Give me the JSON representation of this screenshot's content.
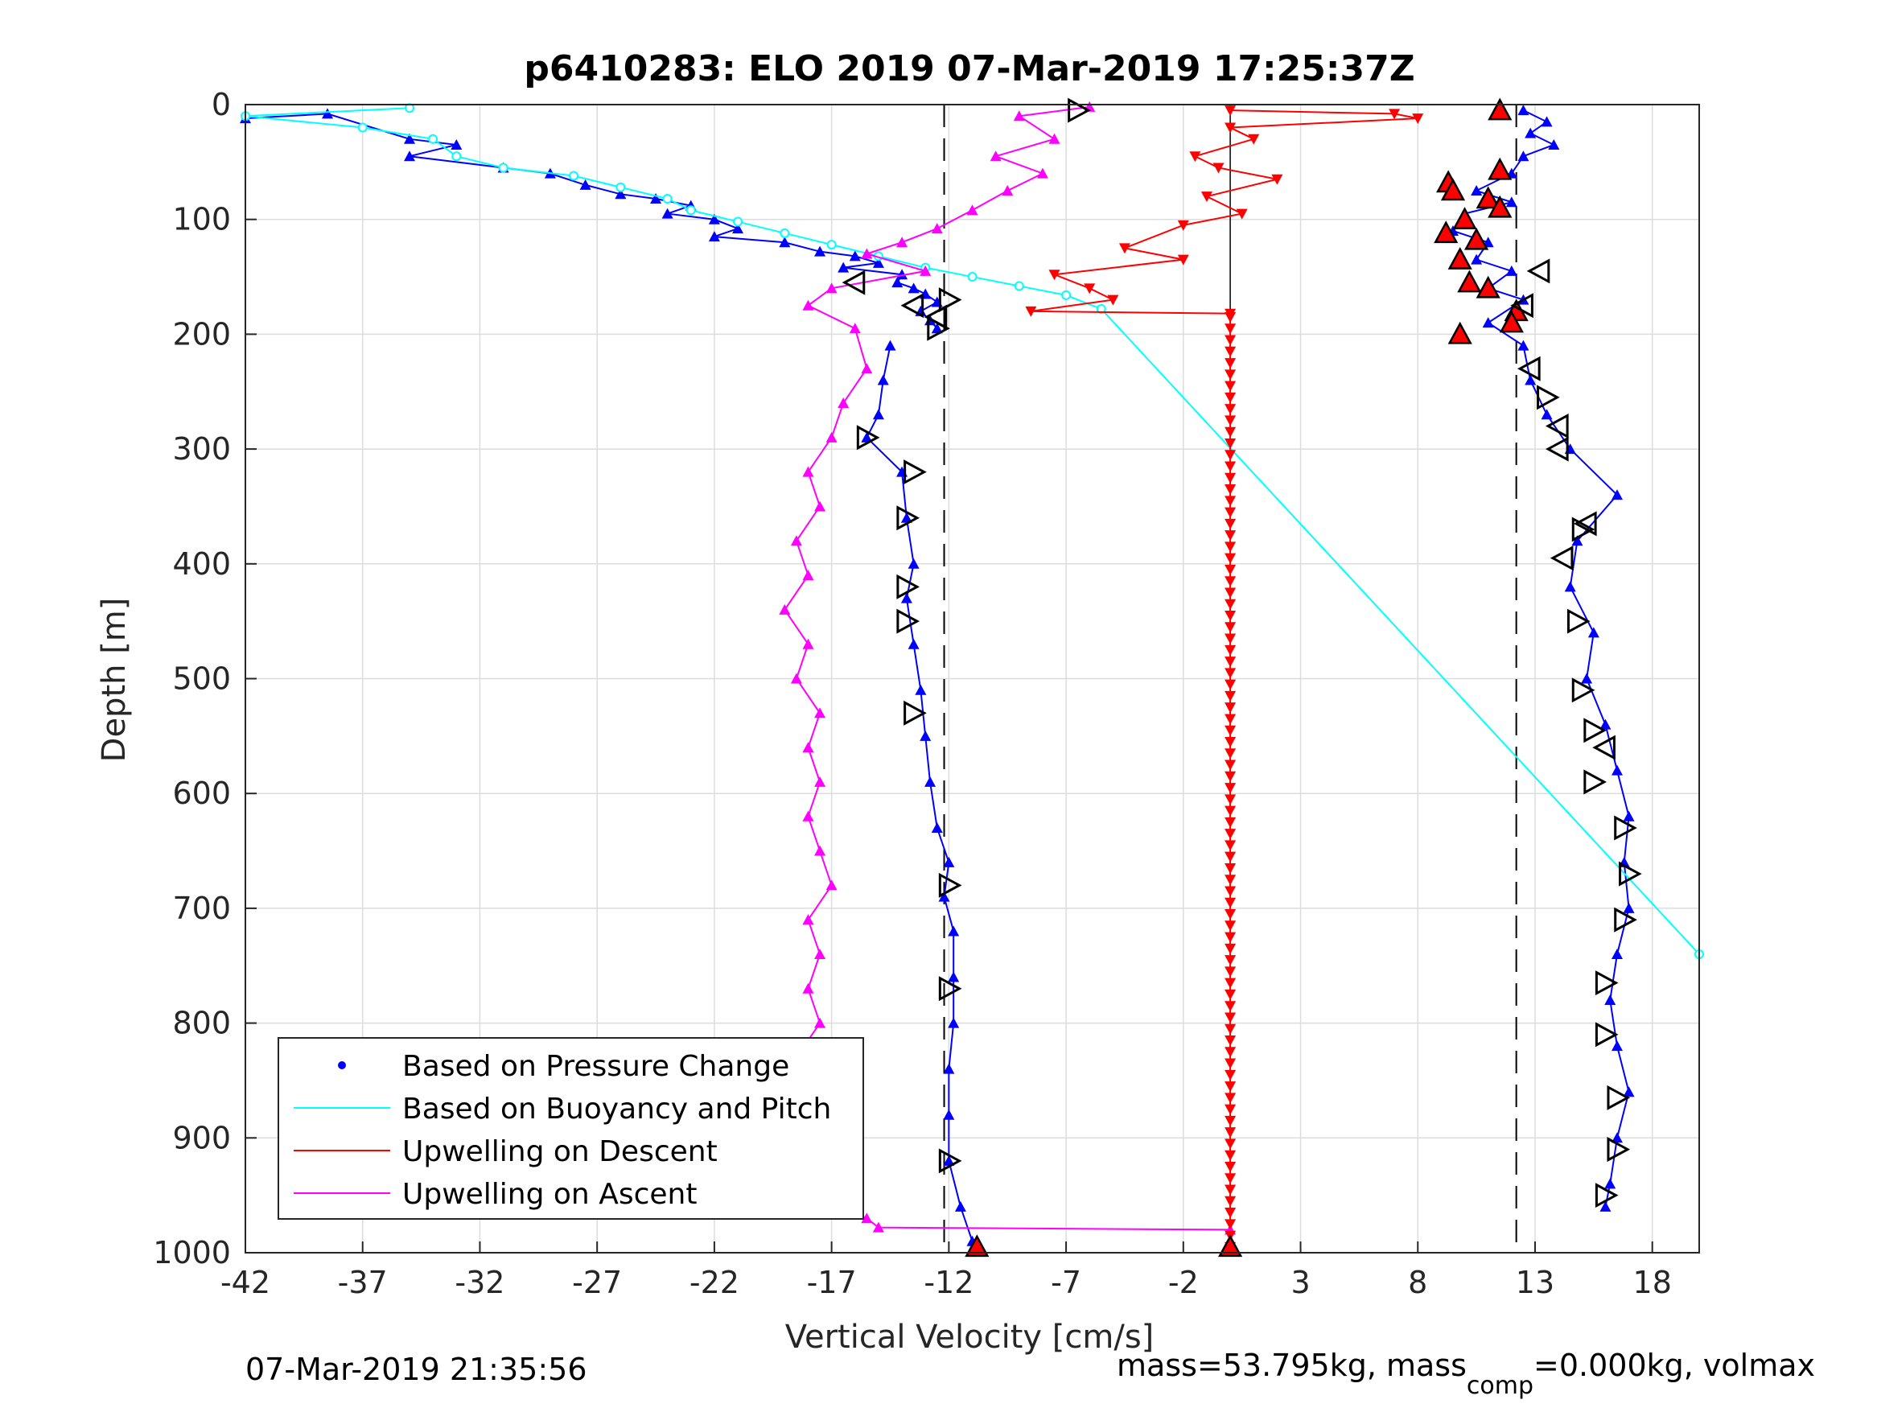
{
  "chart_data": {
    "type": "scatter",
    "title": "p6410283: ELO 2019 07-Mar-2019 17:25:37Z",
    "xlabel": "Vertical Velocity [cm/s]",
    "ylabel": "Depth [m]",
    "xlim": [
      -42,
      20
    ],
    "ylim": [
      0,
      1000
    ],
    "y_reversed": true,
    "grid": true,
    "x_ticks": [
      -42,
      -37,
      -32,
      -27,
      -22,
      -17,
      -12,
      -7,
      -2,
      3,
      8,
      13,
      18
    ],
    "x_tick_labels": [
      "-42",
      "-37",
      "-32",
      "-27",
      "-22",
      "-17",
      "-12",
      "-7",
      "-2",
      "3",
      "8",
      "13",
      "18"
    ],
    "y_ticks": [
      0,
      100,
      200,
      300,
      400,
      500,
      600,
      700,
      800,
      900,
      1000
    ],
    "y_tick_labels": [
      "0",
      "100",
      "200",
      "300",
      "400",
      "500",
      "600",
      "700",
      "800",
      "900",
      "1000"
    ],
    "reference_lines": {
      "dashed_x": [
        -12.2,
        12.2
      ],
      "solid_x": [
        0
      ]
    },
    "legend": {
      "position": "bottom-left",
      "entries": [
        {
          "label": "Based on Pressure Change",
          "color": "#0000ff",
          "style": "dot"
        },
        {
          "label": "Based on Buoyancy and Pitch",
          "color": "#00ffff",
          "style": "line"
        },
        {
          "label": "Upwelling on Descent",
          "color": "#ff0000",
          "style": "line"
        },
        {
          "label": "Upwelling on Ascent",
          "color": "#ff00ff",
          "style": "line"
        }
      ]
    },
    "series": [
      {
        "name": "Based on Pressure Change (descent)",
        "color": "#0000ff",
        "points": [
          [
            -42,
            12
          ],
          [
            -38.5,
            8
          ],
          [
            -35,
            30
          ],
          [
            -33,
            35
          ],
          [
            -35,
            45
          ],
          [
            -31,
            55
          ],
          [
            -29,
            60
          ],
          [
            -27.5,
            70
          ],
          [
            -26,
            78
          ],
          [
            -24.5,
            82
          ],
          [
            -23,
            88
          ],
          [
            -24,
            95
          ],
          [
            -22,
            100
          ],
          [
            -21,
            108
          ],
          [
            -22,
            115
          ],
          [
            -19,
            120
          ],
          [
            -17.5,
            128
          ],
          [
            -16,
            132
          ],
          [
            -15,
            138
          ],
          [
            -16.5,
            142
          ],
          [
            -14,
            148
          ],
          [
            -14.2,
            155
          ],
          [
            -13.5,
            160
          ],
          [
            -13,
            165
          ],
          [
            -12.5,
            172
          ],
          [
            -13.2,
            180
          ],
          [
            -12.8,
            188
          ],
          [
            -12.5,
            195
          ]
        ]
      },
      {
        "name": "Based on Pressure Change (ascent)",
        "color": "#0000ff",
        "points": [
          [
            12.5,
            5
          ],
          [
            13.5,
            15
          ],
          [
            12.8,
            25
          ],
          [
            13.8,
            35
          ],
          [
            12.5,
            45
          ],
          [
            12,
            60
          ],
          [
            10.5,
            75
          ],
          [
            12,
            85
          ],
          [
            10,
            95
          ],
          [
            9.5,
            110
          ],
          [
            11,
            120
          ],
          [
            10.5,
            135
          ],
          [
            12,
            145
          ],
          [
            11,
            160
          ],
          [
            12.5,
            170
          ],
          [
            11,
            190
          ],
          [
            12.5,
            210
          ],
          [
            12.8,
            240
          ],
          [
            13.5,
            270
          ],
          [
            14.5,
            300
          ],
          [
            16.5,
            340
          ],
          [
            14.8,
            380
          ],
          [
            14.5,
            420
          ],
          [
            15.5,
            460
          ],
          [
            15.2,
            500
          ],
          [
            16,
            540
          ],
          [
            16.5,
            580
          ],
          [
            17,
            620
          ],
          [
            16.8,
            660
          ],
          [
            17,
            700
          ],
          [
            16.5,
            740
          ],
          [
            16.2,
            780
          ],
          [
            16.5,
            820
          ],
          [
            17,
            860
          ],
          [
            16.5,
            900
          ],
          [
            16.2,
            940
          ],
          [
            16,
            960
          ]
        ]
      },
      {
        "name": "Based on Pressure Change (deep descent)",
        "color": "#0000ff",
        "points": [
          [
            -14.5,
            210
          ],
          [
            -14.8,
            240
          ],
          [
            -15,
            270
          ],
          [
            -15.5,
            290
          ],
          [
            -14,
            320
          ],
          [
            -13.8,
            360
          ],
          [
            -13.5,
            400
          ],
          [
            -13.8,
            430
          ],
          [
            -13.5,
            470
          ],
          [
            -13.2,
            510
          ],
          [
            -13,
            550
          ],
          [
            -12.8,
            590
          ],
          [
            -12.5,
            630
          ],
          [
            -12,
            660
          ],
          [
            -12.2,
            690
          ],
          [
            -11.8,
            720
          ],
          [
            -11.8,
            760
          ],
          [
            -11.8,
            800
          ],
          [
            -12,
            840
          ],
          [
            -12,
            880
          ],
          [
            -12,
            920
          ],
          [
            -11.5,
            960
          ],
          [
            -11,
            990
          ],
          [
            -10.8,
            995
          ]
        ]
      },
      {
        "name": "Based on Buoyancy and Pitch",
        "color": "#00ffff",
        "points": [
          [
            -35,
            3
          ],
          [
            -42,
            10
          ],
          [
            -37,
            20
          ],
          [
            -34,
            30
          ],
          [
            -33,
            45
          ],
          [
            -31,
            55
          ],
          [
            -28,
            62
          ],
          [
            -26,
            72
          ],
          [
            -24,
            82
          ],
          [
            -23,
            92
          ],
          [
            -21,
            102
          ],
          [
            -19,
            112
          ],
          [
            -17,
            122
          ],
          [
            -15,
            132
          ],
          [
            -13,
            142
          ],
          [
            -11,
            150
          ],
          [
            -9,
            158
          ],
          [
            -7,
            166
          ],
          [
            -5.5,
            178
          ],
          [
            20,
            740
          ]
        ]
      },
      {
        "name": "Upwelling on Descent",
        "color": "#ff0000",
        "points": [
          [
            0,
            5
          ],
          [
            7,
            8
          ],
          [
            8,
            12
          ],
          [
            0,
            20
          ],
          [
            1,
            30
          ],
          [
            -1.5,
            45
          ],
          [
            -0.5,
            55
          ],
          [
            2,
            65
          ],
          [
            -1,
            80
          ],
          [
            0.5,
            95
          ],
          [
            -2,
            105
          ],
          [
            -4.5,
            125
          ],
          [
            -2,
            135
          ],
          [
            -7.5,
            148
          ],
          [
            -6,
            160
          ],
          [
            -5,
            170
          ],
          [
            -8.5,
            180
          ],
          [
            0,
            182
          ],
          [
            0,
            995
          ]
        ]
      },
      {
        "name": "Upwelling on Ascent",
        "color": "#ff00ff",
        "points": [
          [
            -6,
            2
          ],
          [
            -9,
            10
          ],
          [
            -7.5,
            30
          ],
          [
            -10,
            45
          ],
          [
            -8,
            60
          ],
          [
            -9.5,
            75
          ],
          [
            -11,
            92
          ],
          [
            -12.5,
            108
          ],
          [
            -14,
            120
          ],
          [
            -15.5,
            130
          ],
          [
            -13,
            145
          ],
          [
            -17,
            160
          ],
          [
            -18,
            175
          ],
          [
            -16,
            195
          ],
          [
            -15.5,
            230
          ],
          [
            -16.5,
            260
          ],
          [
            -17,
            290
          ],
          [
            -18,
            320
          ],
          [
            -17.5,
            350
          ],
          [
            -18.5,
            380
          ],
          [
            -18,
            410
          ],
          [
            -19,
            440
          ],
          [
            -18,
            470
          ],
          [
            -18.5,
            500
          ],
          [
            -17.5,
            530
          ],
          [
            -18,
            560
          ],
          [
            -17.5,
            590
          ],
          [
            -18,
            620
          ],
          [
            -17.5,
            650
          ],
          [
            -17,
            680
          ],
          [
            -18,
            710
          ],
          [
            -17.5,
            740
          ],
          [
            -18,
            770
          ],
          [
            -17.5,
            800
          ],
          [
            -18.5,
            830
          ],
          [
            -17,
            860
          ],
          [
            -18,
            890
          ],
          [
            -17.5,
            920
          ],
          [
            -18,
            950
          ],
          [
            -15.5,
            970
          ],
          [
            -15,
            978
          ],
          [
            0,
            980
          ]
        ]
      }
    ],
    "markers": {
      "triangles_red_up": [
        [
          -10.8,
          995
        ],
        [
          0,
          995
        ],
        [
          11.5,
          5
        ],
        [
          11.5,
          57
        ],
        [
          9.3,
          68
        ],
        [
          9.5,
          75
        ],
        [
          11,
          82
        ],
        [
          11.5,
          90
        ],
        [
          10,
          100
        ],
        [
          9.2,
          112
        ],
        [
          10.5,
          118
        ],
        [
          9.8,
          135
        ],
        [
          10.2,
          155
        ],
        [
          11,
          160
        ],
        [
          12.2,
          180
        ],
        [
          12,
          190
        ],
        [
          9.8,
          200
        ]
      ],
      "triangles_open_right": [
        [
          -6.5,
          5
        ],
        [
          -12,
          170
        ],
        [
          -12.5,
          195
        ],
        [
          -15.5,
          290
        ],
        [
          -13.5,
          320
        ],
        [
          -13.8,
          360
        ],
        [
          -13.8,
          420
        ],
        [
          -13.8,
          450
        ],
        [
          -13.5,
          530
        ],
        [
          -12,
          680
        ],
        [
          -12,
          770
        ],
        [
          -12,
          920
        ],
        [
          13.5,
          255
        ],
        [
          15,
          370
        ],
        [
          14.8,
          450
        ],
        [
          15,
          510
        ],
        [
          15.5,
          545
        ],
        [
          15.5,
          590
        ],
        [
          16.8,
          630
        ],
        [
          17,
          670
        ],
        [
          16.8,
          710
        ],
        [
          16,
          765
        ],
        [
          16,
          810
        ],
        [
          16.5,
          865
        ],
        [
          16.5,
          910
        ],
        [
          16,
          950
        ]
      ],
      "triangles_open_left": [
        [
          -16,
          155
        ],
        [
          -13.5,
          175
        ],
        [
          -12.5,
          185
        ],
        [
          12.8,
          230
        ],
        [
          14,
          280
        ],
        [
          14,
          300
        ],
        [
          15.2,
          365
        ],
        [
          14.2,
          395
        ],
        [
          16,
          560
        ],
        [
          13.2,
          145
        ],
        [
          12.5,
          175
        ]
      ]
    }
  },
  "footer": {
    "timestamp": "07-Mar-2019 21:35:56",
    "mass_text": "mass=53.795kg, mass",
    "mass_sub": "comp",
    "mass_rest": "=0.000kg, volmax"
  }
}
